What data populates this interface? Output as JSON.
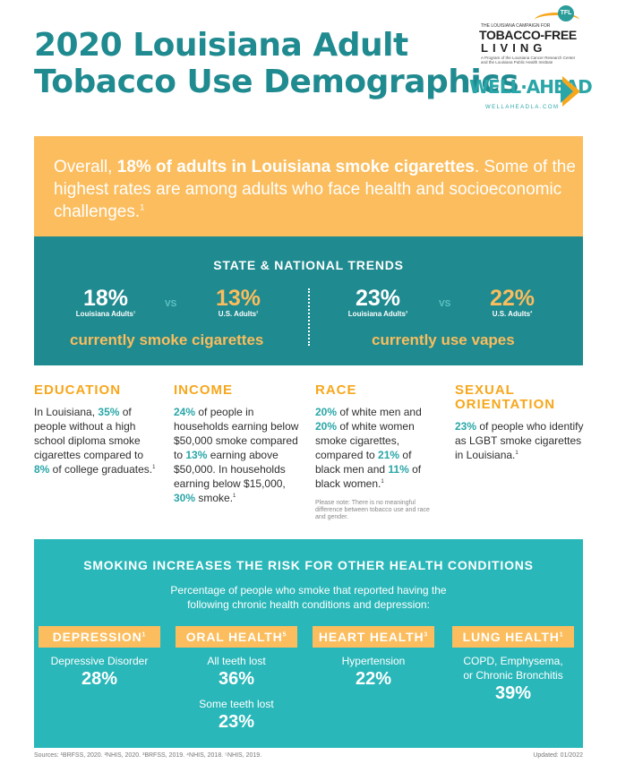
{
  "title": {
    "line1": "2020 Louisiana Adult",
    "line2": "Tobacco Use Demographics"
  },
  "logos": {
    "tfl_badge": "TFL",
    "tfl_top": "THE LOUISIANA CAMPAIGN FOR",
    "tfl_main": "TOBACCO-FREE",
    "tfl_living": "LIVING",
    "tfl_sub": "A Program of the Louisiana Cancer Research Center and the Louisiana Public Health Institute",
    "wa_main": "WELL·AHEAD",
    "wa_url": "WELLAHEADLA.COM"
  },
  "intro": {
    "pre": "Overall, ",
    "bold": "18% of adults in Louisiana smoke cigarettes",
    "post": ". Some of the highest rates are among adults who face health and socioeconomic challenges.",
    "sup": "1"
  },
  "trends": {
    "title": "STATE & NATIONAL TRENDS",
    "vs": "VS",
    "smoke": {
      "la_value": "18%",
      "la_label": "Louisiana Adults",
      "la_sup": "1",
      "us_value": "13%",
      "us_label": "U.S. Adults",
      "us_sup": "2",
      "caption": "currently smoke cigarettes"
    },
    "vape": {
      "la_value": "23%",
      "la_label": "Louisiana Adults",
      "la_sup": "3",
      "us_value": "22%",
      "us_label": "U.S. Adults",
      "us_sup": "4",
      "caption": "currently use vapes"
    }
  },
  "education": {
    "heading": "EDUCATION",
    "t1": "In Louisiana, ",
    "v1": "35%",
    "t2": " of people without a high school diploma smoke cigarettes compared to ",
    "v2": "8%",
    "t3": " of college graduates.",
    "sup": "1"
  },
  "income": {
    "heading": "INCOME",
    "v1": "24%",
    "t1": " of people in households earning below $50,000 smoke compared to ",
    "v2": "13%",
    "t2": " earning above $50,000. In households earning below $15,000, ",
    "v3": "30%",
    "t3": " smoke.",
    "sup": "1"
  },
  "race": {
    "heading": "RACE",
    "v1": "20%",
    "t1": " of white men and ",
    "v2": "20%",
    "t2": " of white women smoke cigarettes, compared to ",
    "v3": "21%",
    "t3": " of black men and ",
    "v4": "11%",
    "t4": " of black women.",
    "sup": "1",
    "note": "Please note: There is no meaningful difference between tobacco use and race and gender."
  },
  "orientation": {
    "heading1": "SEXUAL",
    "heading2": "ORIENTATION",
    "v1": "23%",
    "t1": " of people who identify as LGBT smoke cigarettes in Louisiana.",
    "sup": "1"
  },
  "conditions": {
    "title": "SMOKING INCREASES THE RISK FOR OTHER HEALTH CONDITIONS",
    "subtitle1": "Percentage of people who smoke that reported having the",
    "subtitle2": "following chronic health conditions and depression:",
    "depression": {
      "heading": "DEPRESSION",
      "sup": "1",
      "label": "Depressive Disorder",
      "value": "28%"
    },
    "oral": {
      "heading": "ORAL HEALTH",
      "sup": "5",
      "label1": "All teeth lost",
      "value1": "36%",
      "label2": "Some teeth lost",
      "value2": "23%"
    },
    "heart": {
      "heading": "HEART HEALTH",
      "sup": "3",
      "label": "Hypertension",
      "value": "22%"
    },
    "lung": {
      "heading": "LUNG HEALTH",
      "sup": "1",
      "label1": "COPD, Emphysema,",
      "label2": "or Chronic Bronchitis",
      "value": "39%"
    }
  },
  "footer": {
    "sources": "Sources: ¹BRFSS, 2020. ²NHIS, 2020. ³BRFSS, 2019. ⁴NHIS, 2018. ⁵NHIS, 2019.",
    "updated": "Updated: 01/2022"
  }
}
